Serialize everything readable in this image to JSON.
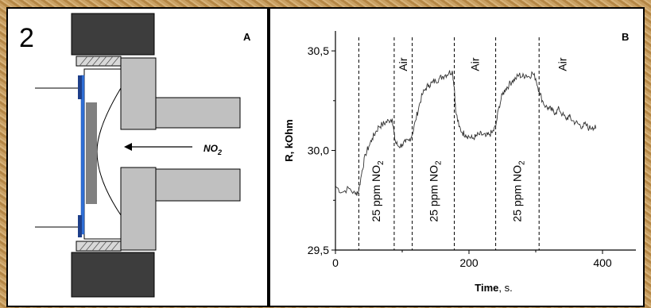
{
  "figure_number": "2",
  "panel_a": {
    "label": "A",
    "gas_label": "NO",
    "gas_subscript": "2"
  },
  "panel_b": {
    "label": "B"
  },
  "colors": {
    "frame": "#c49a5a",
    "housing_dark": "#3d3d3d",
    "housing_gray": "#c0c0c0",
    "sensor_blue": "#2f6fd6",
    "sensitive_layer": "#808080"
  },
  "chart_data": {
    "type": "line",
    "title": "",
    "xlabel": "Time",
    "xlabel_unit": ", s.",
    "ylabel": "R, kOhm",
    "xlim": [
      0,
      450
    ],
    "ylim": [
      29.5,
      30.6
    ],
    "xticks": [
      0,
      200,
      400
    ],
    "xtick_labels": [
      "0",
      "200",
      "400"
    ],
    "yticks": [
      29.5,
      30.0,
      30.5
    ],
    "ytick_labels": [
      "29,5",
      "30,0",
      "30,5"
    ],
    "grid": false,
    "legend": "none",
    "dashed_lines_x": [
      35,
      88,
      115,
      178,
      240,
      305
    ],
    "annotations": [
      {
        "text": "25 ppm NO",
        "sub": "2",
        "x": 61
      },
      {
        "text": "Air",
        "x": 101
      },
      {
        "text": "25 ppm NO",
        "sub": "2",
        "x": 147
      },
      {
        "text": "Air",
        "x": 209
      },
      {
        "text": "25 ppm NO",
        "sub": "2",
        "x": 272
      },
      {
        "text": "Air",
        "x": 340
      }
    ],
    "series": [
      {
        "x": [
          0,
          10,
          20,
          30,
          35,
          40,
          45,
          50,
          55,
          60,
          65,
          70,
          75,
          80,
          85,
          88,
          90,
          95,
          100,
          105,
          110,
          115,
          120,
          125,
          130,
          135,
          140,
          145,
          150,
          155,
          160,
          165,
          170,
          175,
          178,
          180,
          185,
          190,
          195,
          200,
          205,
          210,
          215,
          220,
          225,
          230,
          235,
          240,
          245,
          250,
          255,
          260,
          265,
          270,
          275,
          280,
          285,
          290,
          295,
          300,
          305,
          310,
          315,
          320,
          325,
          330,
          335,
          340,
          345,
          350,
          355,
          360,
          365,
          370,
          375,
          380,
          385,
          390
        ],
        "y": [
          29.82,
          29.79,
          29.81,
          29.78,
          29.8,
          29.9,
          29.98,
          30.02,
          30.06,
          30.09,
          30.12,
          30.13,
          30.14,
          30.15,
          30.16,
          30.08,
          30.04,
          30.02,
          30.03,
          30.04,
          30.05,
          30.08,
          30.15,
          30.22,
          30.28,
          30.31,
          30.33,
          30.34,
          30.35,
          30.36,
          30.37,
          30.38,
          30.39,
          30.4,
          30.32,
          30.2,
          30.12,
          30.09,
          30.08,
          30.07,
          30.06,
          30.07,
          30.08,
          30.08,
          30.07,
          30.08,
          30.09,
          30.12,
          30.22,
          30.28,
          30.31,
          30.33,
          30.35,
          30.36,
          30.38,
          30.37,
          30.38,
          30.37,
          30.39,
          30.36,
          30.3,
          30.25,
          30.22,
          30.21,
          30.2,
          30.19,
          30.21,
          30.18,
          30.16,
          30.17,
          30.15,
          30.14,
          30.13,
          30.12,
          30.13,
          30.11,
          30.12,
          30.11
        ]
      }
    ]
  }
}
